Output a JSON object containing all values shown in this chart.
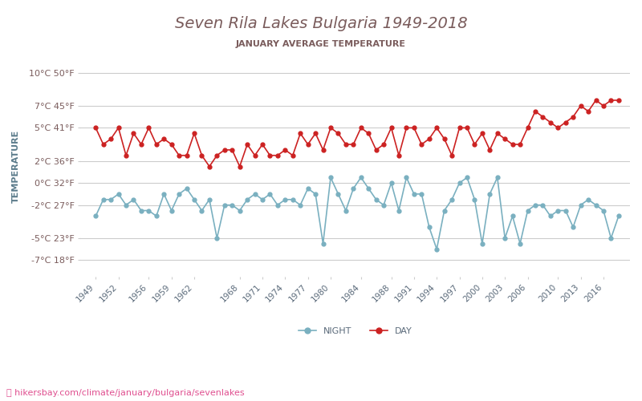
{
  "title": "Seven Rila Lakes Bulgaria 1949-2018",
  "subtitle": "JANUARY AVERAGE TEMPERATURE",
  "ylabel": "TEMPERATURE",
  "footer": "hikersbay.com/climate/january/bulgaria/sevenlakes",
  "title_color": "#7a5c5c",
  "subtitle_color": "#7a5c5c",
  "bg_color": "#ffffff",
  "grid_color": "#cccccc",
  "day_color": "#cc2222",
  "night_color": "#7ab0c0",
  "yticks_c": [
    -7,
    -5,
    -2,
    0,
    2,
    5,
    7,
    10
  ],
  "yticks_f": [
    18,
    23,
    27,
    32,
    36,
    41,
    45,
    50
  ],
  "xtick_labels": [
    1949,
    1952,
    1956,
    1959,
    1962,
    1968,
    1971,
    1974,
    1977,
    1980,
    1984,
    1988,
    1991,
    1994,
    1997,
    2000,
    2003,
    2006,
    2010,
    2013,
    2016
  ],
  "years": [
    1949,
    1950,
    1951,
    1952,
    1953,
    1954,
    1955,
    1956,
    1957,
    1958,
    1959,
    1960,
    1961,
    1962,
    1963,
    1964,
    1965,
    1966,
    1967,
    1968,
    1969,
    1970,
    1971,
    1972,
    1973,
    1974,
    1975,
    1976,
    1977,
    1978,
    1979,
    1980,
    1981,
    1982,
    1983,
    1984,
    1985,
    1986,
    1987,
    1988,
    1989,
    1990,
    1991,
    1992,
    1993,
    1994,
    1995,
    1996,
    1997,
    1998,
    1999,
    2000,
    2001,
    2002,
    2003,
    2004,
    2005,
    2006,
    2007,
    2008,
    2009,
    2010,
    2011,
    2012,
    2013,
    2014,
    2015,
    2016,
    2017,
    2018
  ],
  "day": [
    5.0,
    3.5,
    4.0,
    5.0,
    2.5,
    4.5,
    3.5,
    5.0,
    3.5,
    4.0,
    3.5,
    2.5,
    2.5,
    4.5,
    2.5,
    1.5,
    2.5,
    3.0,
    3.0,
    1.5,
    3.5,
    2.5,
    3.5,
    2.5,
    2.5,
    3.0,
    2.5,
    4.5,
    3.5,
    4.5,
    3.0,
    5.0,
    4.5,
    3.5,
    3.5,
    5.0,
    4.5,
    3.0,
    3.5,
    5.0,
    2.5,
    5.0,
    5.0,
    3.5,
    4.0,
    5.0,
    4.0,
    2.5,
    5.0,
    5.0,
    3.5,
    4.5,
    3.0,
    4.5,
    4.0,
    3.5,
    3.5,
    5.0,
    6.5,
    6.0,
    5.5,
    5.0,
    5.5,
    6.0,
    7.0,
    6.5,
    7.5,
    7.0,
    7.5,
    7.5
  ],
  "night": [
    -3.0,
    -1.5,
    -1.5,
    -1.0,
    -2.0,
    -1.5,
    -2.5,
    -2.5,
    -3.0,
    -1.0,
    -2.5,
    -1.0,
    -0.5,
    -1.5,
    -2.5,
    -1.5,
    -5.0,
    -2.0,
    -2.0,
    -2.5,
    -1.5,
    -1.0,
    -1.5,
    -1.0,
    -2.0,
    -1.5,
    -1.5,
    -2.0,
    -0.5,
    -1.0,
    -5.5,
    0.5,
    -1.0,
    -2.5,
    -0.5,
    0.5,
    -0.5,
    -1.5,
    -2.0,
    0.0,
    -2.5,
    0.5,
    -1.0,
    -1.0,
    -4.0,
    -6.0,
    -2.5,
    -1.5,
    0.0,
    0.5,
    -1.5,
    -5.5,
    -1.0,
    0.5,
    -5.0,
    -3.0,
    -5.5,
    -2.5,
    -2.0,
    -2.0,
    -3.0,
    -2.5,
    -2.5,
    -4.0,
    -2.0,
    -1.5,
    -2.0,
    -2.5,
    -5.0,
    -3.0
  ]
}
